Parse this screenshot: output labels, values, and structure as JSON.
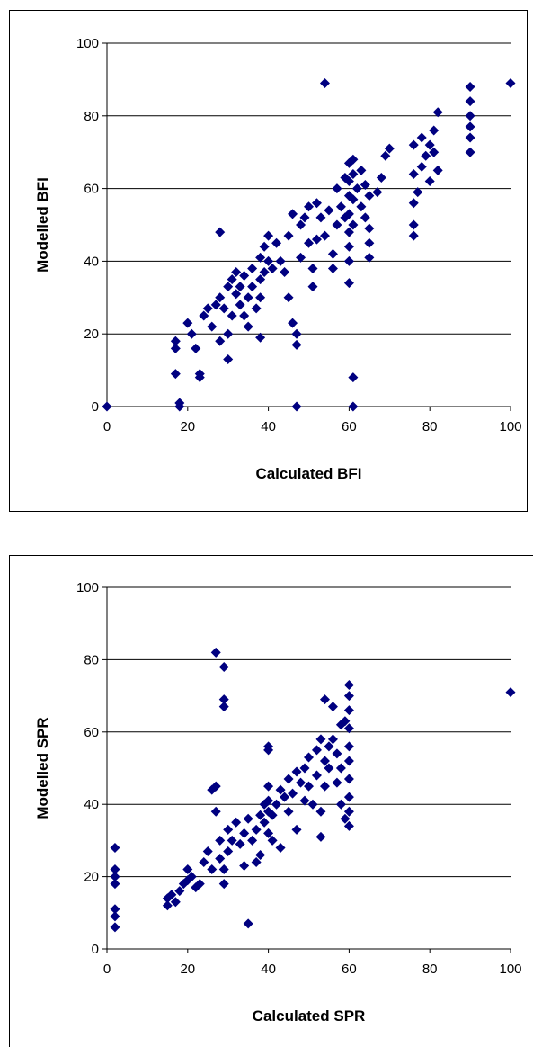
{
  "chart_data": [
    {
      "type": "scatter",
      "title": "",
      "xlabel": "Calculated BFI",
      "ylabel": "Modelled BFI",
      "xlim": [
        0,
        100
      ],
      "ylim": [
        0,
        100
      ],
      "xticks": [
        "0",
        "20",
        "40",
        "60",
        "80",
        "100"
      ],
      "yticks": [
        "0",
        "20",
        "40",
        "60",
        "80",
        "100"
      ],
      "grid": "horizontal",
      "legend": "none",
      "marker": "diamond",
      "marker_color": "#000080",
      "points": [
        [
          0,
          0
        ],
        [
          100,
          89
        ],
        [
          54,
          89
        ],
        [
          47,
          0
        ],
        [
          61,
          0
        ],
        [
          61,
          8
        ],
        [
          18,
          1
        ],
        [
          18,
          0
        ],
        [
          17,
          9
        ],
        [
          17,
          18
        ],
        [
          17,
          16
        ],
        [
          20,
          23
        ],
        [
          21,
          20
        ],
        [
          22,
          16
        ],
        [
          23,
          9
        ],
        [
          23,
          8
        ],
        [
          24,
          25
        ],
        [
          25,
          27
        ],
        [
          26,
          22
        ],
        [
          27,
          28
        ],
        [
          28,
          48
        ],
        [
          28,
          30
        ],
        [
          28,
          18
        ],
        [
          29,
          27
        ],
        [
          30,
          33
        ],
        [
          30,
          20
        ],
        [
          30,
          13
        ],
        [
          31,
          35
        ],
        [
          31,
          25
        ],
        [
          32,
          37
        ],
        [
          32,
          31
        ],
        [
          33,
          28
        ],
        [
          33,
          33
        ],
        [
          34,
          36
        ],
        [
          34,
          25
        ],
        [
          35,
          30
        ],
        [
          35,
          22
        ],
        [
          36,
          38
        ],
        [
          36,
          33
        ],
        [
          37,
          27
        ],
        [
          38,
          41
        ],
        [
          38,
          35
        ],
        [
          38,
          30
        ],
        [
          38,
          19
        ],
        [
          39,
          44
        ],
        [
          39,
          37
        ],
        [
          40,
          40
        ],
        [
          40,
          47
        ],
        [
          41,
          38
        ],
        [
          42,
          45
        ],
        [
          43,
          40
        ],
        [
          44,
          37
        ],
        [
          45,
          47
        ],
        [
          45,
          30
        ],
        [
          46,
          23
        ],
        [
          46,
          53
        ],
        [
          47,
          20
        ],
        [
          47,
          17
        ],
        [
          48,
          50
        ],
        [
          48,
          41
        ],
        [
          49,
          52
        ],
        [
          50,
          55
        ],
        [
          50,
          45
        ],
        [
          51,
          38
        ],
        [
          51,
          33
        ],
        [
          52,
          56
        ],
        [
          52,
          46
        ],
        [
          53,
          52
        ],
        [
          54,
          47
        ],
        [
          55,
          54
        ],
        [
          56,
          42
        ],
        [
          56,
          38
        ],
        [
          57,
          60
        ],
        [
          57,
          50
        ],
        [
          58,
          55
        ],
        [
          59,
          63
        ],
        [
          59,
          52
        ],
        [
          60,
          67
        ],
        [
          60,
          62
        ],
        [
          60,
          58
        ],
        [
          60,
          53
        ],
        [
          60,
          48
        ],
        [
          60,
          44
        ],
        [
          60,
          40
        ],
        [
          60,
          34
        ],
        [
          61,
          68
        ],
        [
          61,
          64
        ],
        [
          61,
          57
        ],
        [
          61,
          50
        ],
        [
          62,
          60
        ],
        [
          63,
          65
        ],
        [
          63,
          55
        ],
        [
          64,
          61
        ],
        [
          64,
          52
        ],
        [
          65,
          58
        ],
        [
          65,
          49
        ],
        [
          65,
          45
        ],
        [
          65,
          41
        ],
        [
          67,
          59
        ],
        [
          68,
          63
        ],
        [
          69,
          69
        ],
        [
          70,
          71
        ],
        [
          76,
          72
        ],
        [
          76,
          64
        ],
        [
          76,
          56
        ],
        [
          76,
          50
        ],
        [
          76,
          47
        ],
        [
          77,
          59
        ],
        [
          78,
          74
        ],
        [
          78,
          66
        ],
        [
          79,
          69
        ],
        [
          80,
          72
        ],
        [
          80,
          62
        ],
        [
          81,
          76
        ],
        [
          81,
          70
        ],
        [
          82,
          81
        ],
        [
          82,
          65
        ],
        [
          90,
          88
        ],
        [
          90,
          84
        ],
        [
          90,
          80
        ],
        [
          90,
          77
        ],
        [
          90,
          74
        ],
        [
          90,
          70
        ]
      ]
    },
    {
      "type": "scatter",
      "title": "",
      "xlabel": "Calculated SPR",
      "ylabel": "Modelled SPR",
      "xlim": [
        0,
        100
      ],
      "ylim": [
        0,
        100
      ],
      "xticks": [
        "0",
        "20",
        "40",
        "60",
        "80",
        "100"
      ],
      "yticks": [
        "0",
        "20",
        "40",
        "60",
        "80",
        "100"
      ],
      "grid": "horizontal",
      "legend": "none",
      "marker": "diamond",
      "marker_color": "#000080",
      "points": [
        [
          100,
          71
        ],
        [
          2,
          28
        ],
        [
          2,
          22
        ],
        [
          2,
          20
        ],
        [
          2,
          18
        ],
        [
          2,
          11
        ],
        [
          2,
          9
        ],
        [
          2,
          6
        ],
        [
          15,
          12
        ],
        [
          15,
          14
        ],
        [
          16,
          15
        ],
        [
          17,
          13
        ],
        [
          18,
          16
        ],
        [
          19,
          18
        ],
        [
          20,
          22
        ],
        [
          20,
          19
        ],
        [
          21,
          20
        ],
        [
          22,
          17
        ],
        [
          23,
          18
        ],
        [
          24,
          24
        ],
        [
          25,
          27
        ],
        [
          26,
          22
        ],
        [
          26,
          44
        ],
        [
          27,
          45
        ],
        [
          27,
          38
        ],
        [
          27,
          82
        ],
        [
          28,
          30
        ],
        [
          28,
          25
        ],
        [
          29,
          78
        ],
        [
          29,
          69
        ],
        [
          29,
          67
        ],
        [
          29,
          22
        ],
        [
          29,
          18
        ],
        [
          30,
          33
        ],
        [
          30,
          27
        ],
        [
          31,
          30
        ],
        [
          32,
          35
        ],
        [
          33,
          29
        ],
        [
          34,
          32
        ],
        [
          34,
          23
        ],
        [
          35,
          36
        ],
        [
          35,
          7
        ],
        [
          36,
          30
        ],
        [
          37,
          33
        ],
        [
          37,
          24
        ],
        [
          38,
          37
        ],
        [
          38,
          26
        ],
        [
          39,
          40
        ],
        [
          39,
          35
        ],
        [
          40,
          41
        ],
        [
          40,
          56
        ],
        [
          40,
          55
        ],
        [
          40,
          45
        ],
        [
          40,
          38
        ],
        [
          40,
          32
        ],
        [
          41,
          37
        ],
        [
          41,
          30
        ],
        [
          42,
          40
        ],
        [
          43,
          44
        ],
        [
          43,
          28
        ],
        [
          44,
          42
        ],
        [
          45,
          47
        ],
        [
          45,
          38
        ],
        [
          46,
          43
        ],
        [
          47,
          49
        ],
        [
          47,
          33
        ],
        [
          48,
          46
        ],
        [
          49,
          50
        ],
        [
          49,
          41
        ],
        [
          50,
          53
        ],
        [
          50,
          45
        ],
        [
          51,
          40
        ],
        [
          52,
          55
        ],
        [
          52,
          48
        ],
        [
          53,
          58
        ],
        [
          53,
          38
        ],
        [
          53,
          31
        ],
        [
          54,
          69
        ],
        [
          54,
          52
        ],
        [
          54,
          45
        ],
        [
          55,
          56
        ],
        [
          55,
          50
        ],
        [
          56,
          67
        ],
        [
          56,
          58
        ],
        [
          57,
          54
        ],
        [
          57,
          46
        ],
        [
          58,
          62
        ],
        [
          58,
          50
        ],
        [
          58,
          40
        ],
        [
          59,
          63
        ],
        [
          59,
          36
        ],
        [
          60,
          73
        ],
        [
          60,
          70
        ],
        [
          60,
          66
        ],
        [
          60,
          61
        ],
        [
          60,
          56
        ],
        [
          60,
          52
        ],
        [
          60,
          47
        ],
        [
          60,
          42
        ],
        [
          60,
          38
        ],
        [
          60,
          34
        ]
      ]
    }
  ]
}
